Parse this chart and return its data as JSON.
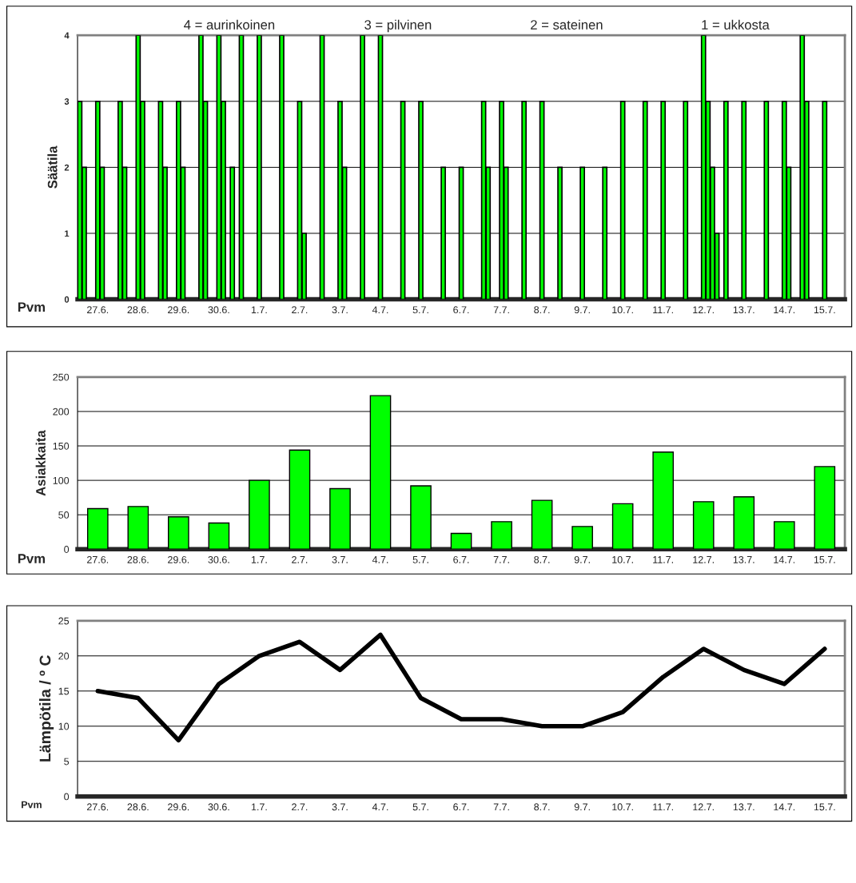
{
  "chart_data": [
    {
      "type": "bar",
      "ylabel": "Säätila",
      "xlabel": "Pvm",
      "annotations": [
        "4 = aurinkoinen",
        "3 = pilvinen",
        "2 = sateinen",
        "1 = ukkosta"
      ],
      "categories": [
        null,
        null,
        null,
        null,
        "27.6.",
        null,
        null,
        null,
        null,
        null,
        null,
        null,
        null,
        "28.6.",
        null,
        null,
        null,
        null,
        null,
        null,
        null,
        null,
        "29.6.",
        null,
        null,
        null,
        null,
        null,
        null,
        null,
        null,
        "30.6.",
        null,
        null,
        null,
        null,
        null,
        null,
        null,
        null,
        "1.7.",
        null,
        null,
        null,
        null,
        null,
        null,
        null,
        null,
        "2.7.",
        null,
        null,
        null,
        null,
        null,
        null,
        null,
        null,
        "3.7.",
        null,
        null,
        null,
        null,
        null,
        null,
        null,
        null,
        "4.7.",
        null,
        null,
        null,
        null,
        null,
        null,
        null,
        null,
        "5.7.",
        null,
        null,
        null,
        null,
        null,
        null,
        null,
        null,
        "6.7.",
        null,
        null,
        null,
        null,
        null,
        null,
        null,
        null,
        "7.7.",
        null,
        null,
        null,
        null,
        null,
        null,
        null,
        null,
        "8.7.",
        null,
        null,
        null,
        null,
        null,
        null,
        null,
        null,
        "9.7.",
        null,
        null,
        null,
        null,
        null,
        null,
        null,
        null,
        "10.7.",
        null,
        null,
        null,
        null,
        null,
        null,
        null,
        null,
        "11.7.",
        null,
        null,
        null,
        null,
        null,
        null,
        null,
        null,
        "12.7.",
        null,
        null,
        null,
        null,
        null,
        null,
        null,
        null,
        "13.7.",
        null,
        null,
        null,
        null,
        null,
        null,
        null,
        null,
        "14.7.",
        null,
        null,
        null,
        null,
        null,
        null,
        null,
        null,
        "15.7.",
        null,
        null,
        null,
        null
      ],
      "values": [
        3,
        2,
        null,
        null,
        3,
        2,
        null,
        null,
        null,
        3,
        2,
        null,
        null,
        4,
        3,
        null,
        null,
        null,
        3,
        2,
        null,
        null,
        3,
        2,
        null,
        null,
        null,
        4,
        3,
        null,
        null,
        4,
        3,
        null,
        2,
        null,
        4,
        null,
        null,
        null,
        4,
        null,
        null,
        null,
        null,
        4,
        null,
        null,
        null,
        3,
        1,
        null,
        null,
        null,
        4,
        null,
        null,
        null,
        3,
        2,
        null,
        null,
        null,
        4,
        null,
        null,
        null,
        4,
        null,
        null,
        null,
        null,
        3,
        null,
        null,
        null,
        3,
        null,
        null,
        null,
        null,
        2,
        null,
        null,
        null,
        2,
        null,
        null,
        null,
        null,
        3,
        2,
        null,
        null,
        3,
        2,
        null,
        null,
        null,
        3,
        null,
        null,
        null,
        3,
        null,
        null,
        null,
        2,
        null,
        null,
        null,
        null,
        2,
        null,
        null,
        null,
        null,
        2,
        null,
        null,
        null,
        3,
        null,
        null,
        null,
        null,
        3,
        null,
        null,
        null,
        3,
        null,
        null,
        null,
        null,
        3,
        null,
        null,
        null,
        4,
        3,
        2,
        1,
        null,
        3,
        null,
        null,
        null,
        3,
        null,
        null,
        null,
        null,
        3,
        null,
        null,
        null,
        3,
        2,
        null,
        null,
        4,
        3,
        null,
        null,
        null,
        3,
        null,
        null,
        null,
        null
      ],
      "color": "#00ff00",
      "ylim": [
        0,
        4
      ],
      "yticks": [
        0,
        1,
        2,
        3,
        4
      ],
      "grid": "y"
    },
    {
      "type": "bar",
      "ylabel": "Asiakkaita",
      "xlabel": "Pvm",
      "categories": [
        "27.6.",
        "28.6.",
        "29.6.",
        "30.6.",
        "1.7.",
        "2.7.",
        "3.7.",
        "4.7.",
        "5.7.",
        "6.7.",
        "7.7.",
        "8.7.",
        "9.7.",
        "10.7.",
        "11.7.",
        "12.7.",
        "13.7.",
        "14.7.",
        "15.7."
      ],
      "values": [
        59,
        62,
        47,
        38,
        100,
        144,
        88,
        223,
        92,
        23,
        40,
        71,
        33,
        66,
        141,
        69,
        76,
        40,
        120
      ],
      "color": "#00ff00",
      "ylim": [
        0,
        250
      ],
      "yticks": [
        0,
        50,
        100,
        150,
        200,
        250
      ],
      "grid": "y"
    },
    {
      "type": "line",
      "ylabel": "Lämpötila / º C",
      "xlabel": "Pvm",
      "categories": [
        "27.6.",
        "28.6.",
        "29.6.",
        "30.6.",
        "1.7.",
        "2.7.",
        "3.7.",
        "4.7.",
        "5.7.",
        "6.7.",
        "7.7.",
        "8.7.",
        "9.7.",
        "10.7.",
        "11.7.",
        "12.7.",
        "13.7.",
        "14.7.",
        "15.7."
      ],
      "values": [
        15,
        14,
        8,
        16,
        20,
        22,
        18,
        23,
        14,
        11,
        11,
        10,
        10,
        12,
        17,
        21,
        18,
        16,
        21
      ],
      "color": "#000000",
      "ylim": [
        0,
        25
      ],
      "yticks": [
        0,
        5,
        10,
        15,
        20,
        25
      ],
      "grid": "y"
    }
  ]
}
